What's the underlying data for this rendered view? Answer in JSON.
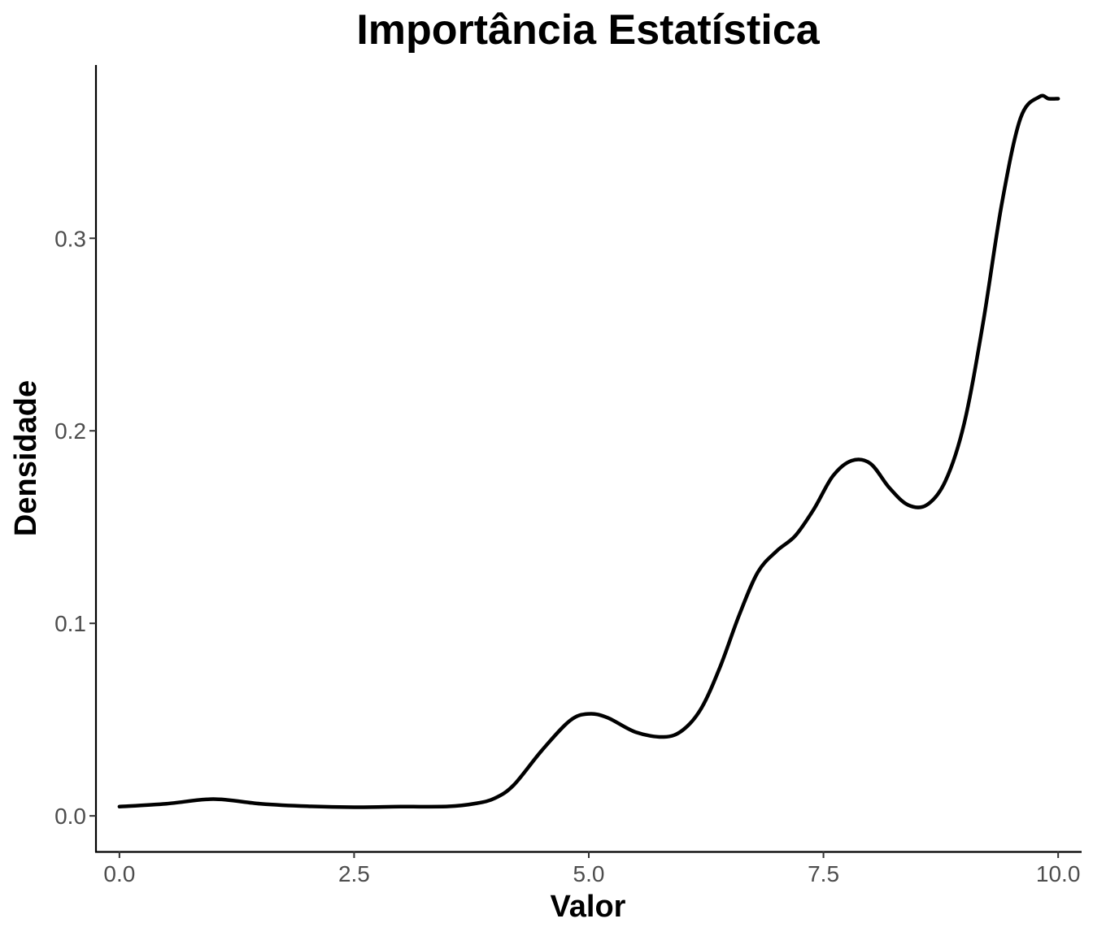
{
  "chart_data": {
    "type": "line",
    "title": "Importância Estatística",
    "xlabel": "Valor",
    "ylabel": "Densidade",
    "xlim": [
      -0.25,
      10.25
    ],
    "ylim": [
      -0.0185,
      0.39
    ],
    "x_ticks": [
      0.0,
      2.5,
      5.0,
      7.5,
      10.0
    ],
    "x_tick_labels": [
      "0.0",
      "2.5",
      "5.0",
      "7.5",
      "10.0"
    ],
    "y_ticks": [
      0.0,
      0.1,
      0.2,
      0.3
    ],
    "y_tick_labels": [
      "0.0",
      "0.1",
      "0.2",
      "0.3"
    ],
    "grid": false,
    "line_color": "#000000",
    "series": [
      {
        "x": [
          0.0,
          0.5,
          1.0,
          1.5,
          2.0,
          2.5,
          3.0,
          3.5,
          3.8,
          4.0,
          4.2,
          4.5,
          4.8,
          5.0,
          5.2,
          5.5,
          5.8,
          6.0,
          6.2,
          6.4,
          6.6,
          6.8,
          7.0,
          7.2,
          7.4,
          7.6,
          7.8,
          8.0,
          8.2,
          8.4,
          8.6,
          8.8,
          9.0,
          9.2,
          9.4,
          9.6,
          9.8,
          9.9,
          10.0
        ],
        "y": [
          0.0048,
          0.0063,
          0.0087,
          0.0063,
          0.005,
          0.0045,
          0.0048,
          0.0049,
          0.0065,
          0.0092,
          0.016,
          0.034,
          0.0495,
          0.053,
          0.051,
          0.0435,
          0.041,
          0.0445,
          0.056,
          0.0775,
          0.104,
          0.1265,
          0.1375,
          0.1455,
          0.1595,
          0.1765,
          0.1845,
          0.183,
          0.1705,
          0.1615,
          0.1615,
          0.174,
          0.204,
          0.256,
          0.318,
          0.3625,
          0.3735,
          0.3725,
          0.3725
        ]
      }
    ]
  }
}
